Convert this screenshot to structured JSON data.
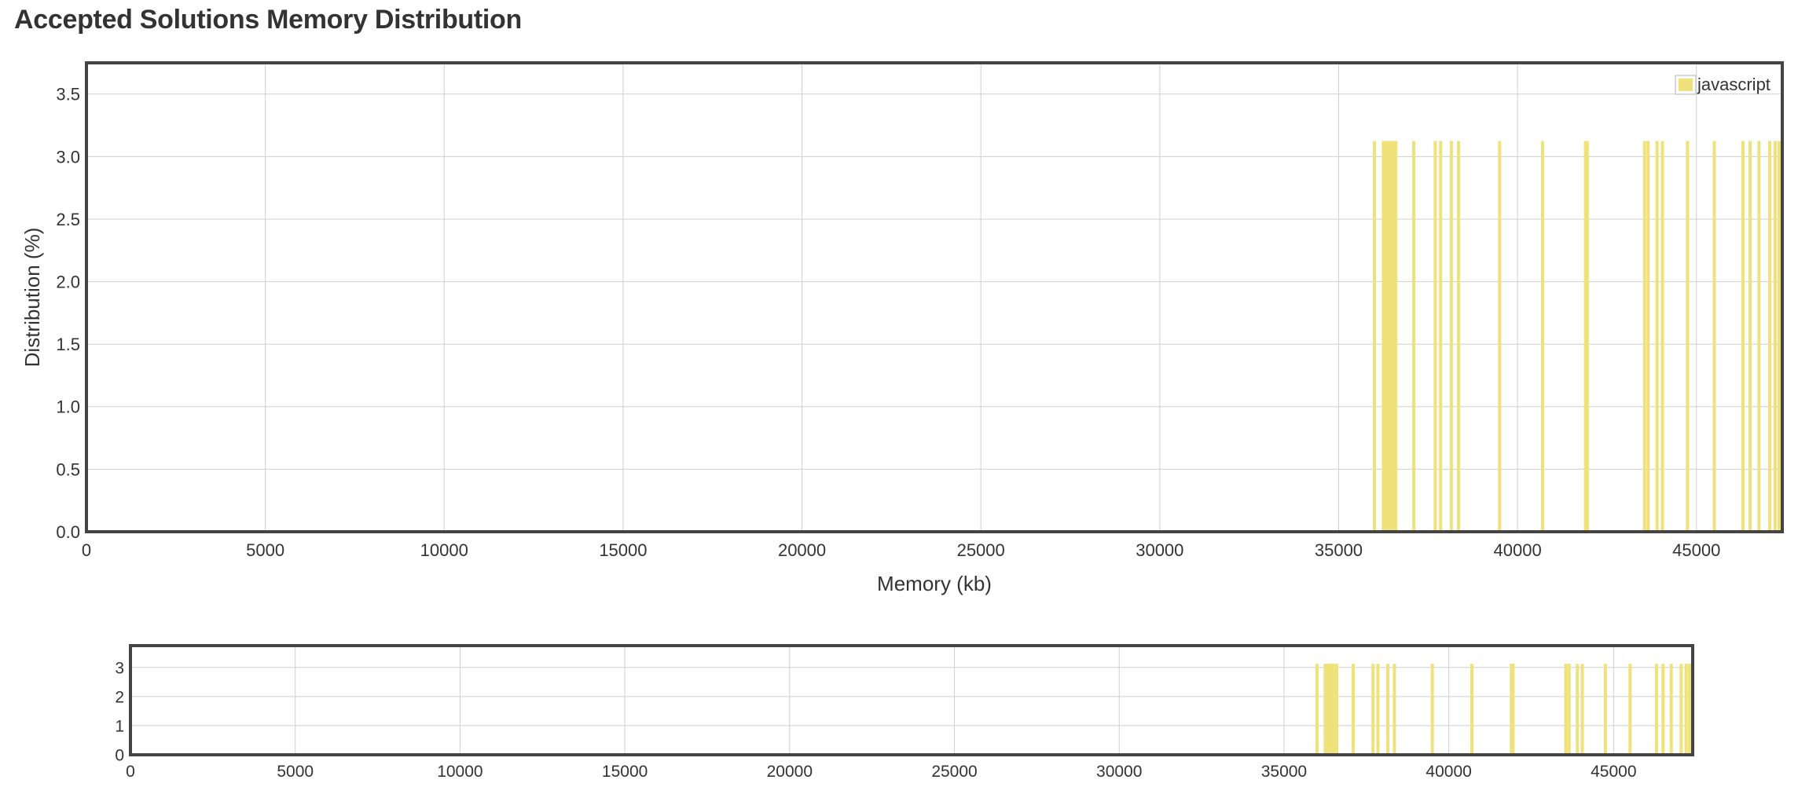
{
  "page": {
    "title": "Accepted Solutions Memory Distribution"
  },
  "colors": {
    "bar": "#efe27a",
    "frame": "#444444",
    "grid": "#cfcfcf",
    "text": "#333333"
  },
  "chart_data": [
    {
      "type": "bar",
      "role": "main",
      "xlabel": "Memory (kb)",
      "ylabel": "Distribution (%)",
      "xlim": [
        0,
        47400
      ],
      "ylim": [
        0,
        3.75
      ],
      "xticks": [
        "0",
        "5000",
        "10000",
        "15000",
        "20000",
        "25000",
        "30000",
        "35000",
        "40000",
        "45000"
      ],
      "yticks": [
        "0.0",
        "0.5",
        "1.0",
        "1.5",
        "2.0",
        "2.5",
        "3.0",
        "3.5"
      ],
      "grid": true,
      "legend": "top-right",
      "series": [
        {
          "name": "javascript",
          "x": [
            36000,
            36250,
            36300,
            36350,
            36400,
            36450,
            36500,
            36550,
            36600,
            37100,
            37700,
            37850,
            38150,
            38350,
            39500,
            40700,
            41900,
            41950,
            43550,
            43650,
            43900,
            44050,
            44750,
            45500,
            46300,
            46500,
            46750,
            47050,
            47200,
            47350
          ],
          "values": [
            3.125,
            3.125,
            3.125,
            3.125,
            3.125,
            3.125,
            3.125,
            3.125,
            3.125,
            3.125,
            3.125,
            3.125,
            3.125,
            3.125,
            3.125,
            3.125,
            3.125,
            3.125,
            3.125,
            3.125,
            3.125,
            3.125,
            3.125,
            3.125,
            3.125,
            3.125,
            3.125,
            3.125,
            3.125,
            3.125
          ]
        }
      ]
    },
    {
      "type": "bar",
      "role": "overview",
      "xlim": [
        0,
        47400
      ],
      "ylim": [
        0,
        3.75
      ],
      "xticks": [
        "0",
        "5000",
        "10000",
        "15000",
        "20000",
        "25000",
        "30000",
        "35000",
        "40000",
        "45000"
      ],
      "yticks": [
        "0",
        "1",
        "2",
        "3"
      ],
      "grid": true,
      "series": [
        {
          "name": "javascript",
          "x": [
            36000,
            36250,
            36300,
            36350,
            36400,
            36450,
            36500,
            36550,
            36600,
            37100,
            37700,
            37850,
            38150,
            38350,
            39500,
            40700,
            41900,
            41950,
            43550,
            43650,
            43900,
            44050,
            44750,
            45500,
            46300,
            46500,
            46750,
            47050,
            47200,
            47350
          ],
          "values": [
            3.125,
            3.125,
            3.125,
            3.125,
            3.125,
            3.125,
            3.125,
            3.125,
            3.125,
            3.125,
            3.125,
            3.125,
            3.125,
            3.125,
            3.125,
            3.125,
            3.125,
            3.125,
            3.125,
            3.125,
            3.125,
            3.125,
            3.125,
            3.125,
            3.125,
            3.125,
            3.125,
            3.125,
            3.125,
            3.125
          ]
        }
      ]
    }
  ]
}
